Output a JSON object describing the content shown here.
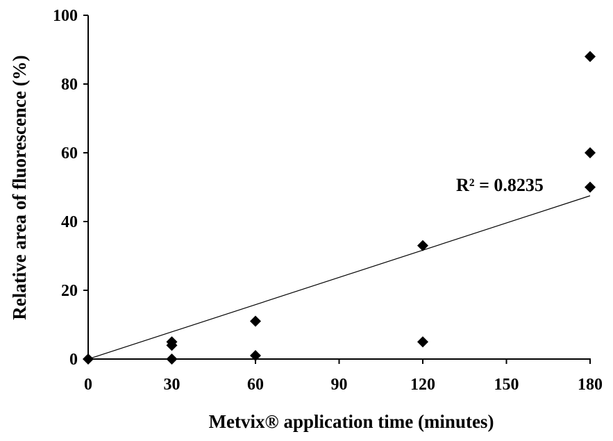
{
  "chart_data": {
    "type": "scatter",
    "title": "",
    "xlabel": "Metvix® application time (minutes)",
    "ylabel": "Relative area of fluorescence (%)",
    "xlim": [
      0,
      180
    ],
    "ylim": [
      0,
      100
    ],
    "x_ticks": [
      0,
      30,
      60,
      90,
      120,
      150,
      180
    ],
    "y_ticks": [
      0,
      20,
      40,
      60,
      80,
      100
    ],
    "grid": false,
    "legend": "none",
    "marker": "diamond",
    "marker_color": "#000000",
    "series": [
      {
        "points": [
          {
            "x": 0,
            "y": 0
          },
          {
            "x": 30,
            "y": 5
          },
          {
            "x": 30,
            "y": 4
          },
          {
            "x": 30,
            "y": 0
          },
          {
            "x": 60,
            "y": 11
          },
          {
            "x": 60,
            "y": 1
          },
          {
            "x": 120,
            "y": 33
          },
          {
            "x": 120,
            "y": 5
          },
          {
            "x": 180,
            "y": 88
          },
          {
            "x": 180,
            "y": 60
          },
          {
            "x": 180,
            "y": 50
          }
        ]
      }
    ],
    "trendline": {
      "type": "linear",
      "x": [
        0,
        180
      ],
      "y": [
        0,
        47.5
      ]
    },
    "annotations": [
      {
        "text": "R² = 0.8235"
      }
    ]
  }
}
